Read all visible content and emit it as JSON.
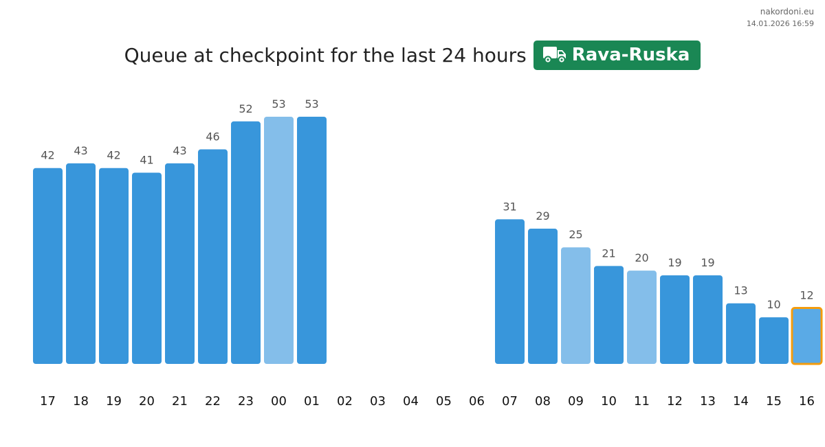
{
  "brand": {
    "site": "nakordoni.eu",
    "timestamp": "14.01.2026 16:59"
  },
  "title": "Queue at checkpoint for the last 24 hours",
  "checkpoint": {
    "name": "Rava-Ruska",
    "icon": "truck-icon",
    "badge_color": "#1a8754"
  },
  "colors": {
    "bar": "#3896db",
    "bar_light": "#84beea",
    "bar_current": "#5aaae6",
    "current_outline": "#f59c0c"
  },
  "chart_data": {
    "type": "bar",
    "categories": [
      "17",
      "18",
      "19",
      "20",
      "21",
      "22",
      "23",
      "00",
      "01",
      "02",
      "03",
      "04",
      "05",
      "06",
      "07",
      "08",
      "09",
      "10",
      "11",
      "12",
      "13",
      "14",
      "15",
      "16"
    ],
    "values": [
      42,
      43,
      42,
      41,
      43,
      46,
      52,
      53,
      53,
      null,
      null,
      null,
      null,
      null,
      31,
      29,
      25,
      21,
      20,
      19,
      19,
      13,
      10,
      12
    ],
    "styles": [
      "bar",
      "bar",
      "bar",
      "bar",
      "bar",
      "bar",
      "bar",
      "light",
      "bar",
      null,
      null,
      null,
      null,
      null,
      "bar",
      "bar",
      "light",
      "bar",
      "light",
      "bar",
      "bar",
      "bar",
      "bar",
      "current"
    ],
    "ylim": [
      0,
      53
    ],
    "grid": false,
    "legend": "none",
    "xlabel": "",
    "ylabel": ""
  }
}
